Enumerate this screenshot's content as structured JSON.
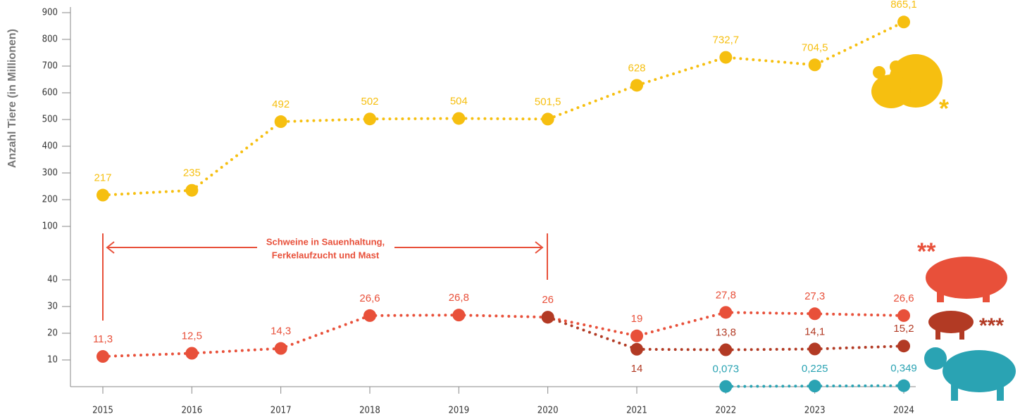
{
  "chart_data": {
    "type": "line",
    "y_label": "Anzahl Tiere (in Millionen)",
    "categories": [
      "2015",
      "2016",
      "2017",
      "2018",
      "2019",
      "2020",
      "2021",
      "2022",
      "2023",
      "2024"
    ],
    "series": [
      {
        "color": "#f6bf10",
        "values": [
          217,
          235,
          492,
          502,
          504,
          501.5,
          628,
          732.7,
          704.5,
          865.1
        ],
        "value_labels": [
          "217",
          "235",
          "492",
          "502",
          "504",
          "501,5",
          "628",
          "732,7",
          "704,5",
          "865,1"
        ]
      },
      {
        "color": "#e8503a",
        "values": [
          11.3,
          12.5,
          14.3,
          26.6,
          26.8,
          26,
          19,
          27.8,
          27.3,
          26.6
        ],
        "value_labels": [
          "11,3",
          "12,5",
          "14,3",
          "26,6",
          "26,8",
          "26",
          "19",
          "27,8",
          "27,3",
          "26,6"
        ]
      },
      {
        "color": "#b23a24",
        "values": [
          null,
          null,
          null,
          null,
          null,
          26,
          14,
          13.8,
          14.1,
          15.2
        ],
        "value_labels": [
          null,
          null,
          null,
          null,
          null,
          null,
          "14",
          "13,8",
          "14,1",
          "15,2"
        ]
      },
      {
        "color": "#2aa3b3",
        "values": [
          null,
          null,
          null,
          null,
          null,
          null,
          null,
          0.073,
          0.225,
          0.349
        ],
        "value_labels": [
          null,
          null,
          null,
          null,
          null,
          null,
          null,
          "0,073",
          "0,225",
          "0,349"
        ]
      }
    ],
    "ylim": [
      0,
      900
    ],
    "ybreak": [
      50,
      100
    ],
    "yticks": [
      10,
      20,
      30,
      40,
      100,
      200,
      300,
      400,
      500,
      600,
      700,
      800,
      900
    ],
    "annotations": {
      "bracket": [
        "Schweine in Sauenhaltung,",
        "Ferkelaufzucht und Mast"
      ],
      "poultry": "*",
      "pigs": "**",
      "piglets": "***"
    }
  }
}
